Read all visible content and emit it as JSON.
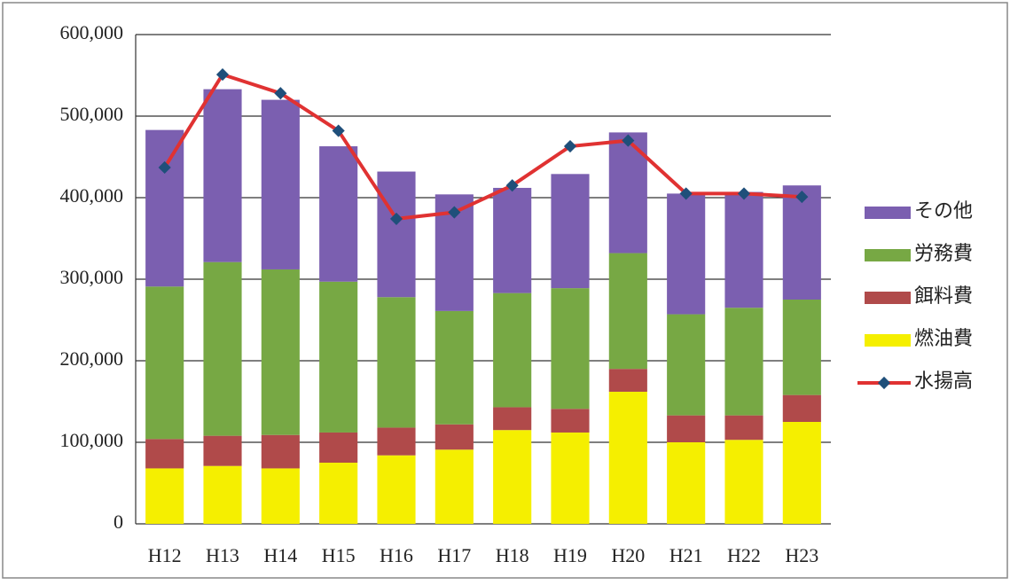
{
  "chart_data": {
    "type": "bar",
    "stacked": true,
    "grid": true,
    "legend": "right",
    "categories": [
      "H12",
      "H13",
      "H14",
      "H15",
      "H16",
      "H17",
      "H18",
      "H19",
      "H20",
      "H21",
      "H22",
      "H23"
    ],
    "series": [
      {
        "name": "その他",
        "color": "#7b5fb0",
        "values": [
          192000,
          212000,
          208000,
          166000,
          154000,
          143000,
          129000,
          140000,
          148000,
          148000,
          142000,
          140000
        ]
      },
      {
        "name": "労務費",
        "color": "#77a844",
        "values": [
          187000,
          213000,
          203000,
          185000,
          160000,
          139000,
          140000,
          148000,
          142000,
          124000,
          132000,
          117000
        ]
      },
      {
        "name": "餌料費",
        "color": "#b04a4a",
        "values": [
          36000,
          37000,
          41000,
          37000,
          34000,
          31000,
          28000,
          29000,
          28000,
          33000,
          30000,
          33000
        ]
      },
      {
        "name": "燃油費",
        "color": "#f5ef00",
        "values": [
          68000,
          71000,
          68000,
          75000,
          84000,
          91000,
          115000,
          112000,
          162000,
          100000,
          103000,
          125000
        ]
      },
      {
        "name": "水揚高",
        "type": "line",
        "color": "#e03232",
        "marker_color": "#1f4f7a",
        "values": [
          437000,
          551000,
          528000,
          482000,
          374000,
          382000,
          415000,
          463000,
          470000,
          405000,
          405000,
          401000
        ]
      }
    ],
    "ylim": [
      0,
      600000
    ],
    "yticks": [
      0,
      {
        "value": 100000,
        "label": "100,000"
      },
      {
        "value": 200000,
        "label": "200,000"
      },
      {
        "value": 300000,
        "label": "300,000"
      },
      {
        "value": 400000,
        "label": "400,000"
      },
      {
        "value": 500000,
        "label": "500,000"
      },
      {
        "value": 600000,
        "label": "600,000"
      }
    ]
  }
}
